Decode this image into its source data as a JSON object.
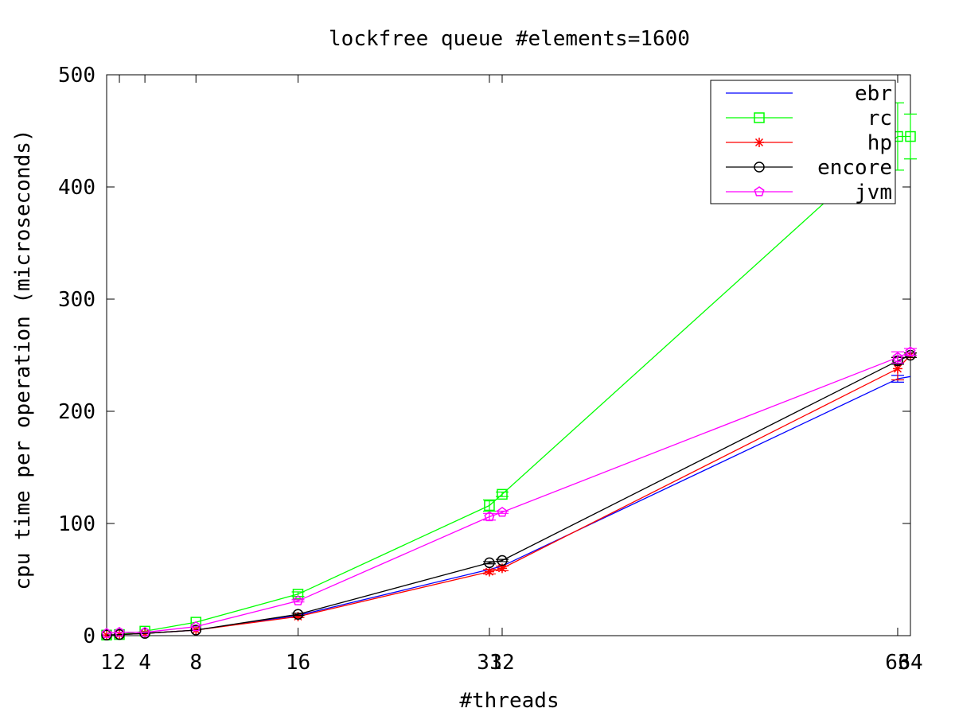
{
  "chart_data": {
    "type": "line",
    "title": "lockfree queue #elements=1600",
    "xlabel": "#threads",
    "ylabel": "cpu time per operation (microseconds)",
    "xlim": [
      1,
      64
    ],
    "ylim": [
      0,
      500
    ],
    "xticks": [
      1,
      2,
      4,
      8,
      16,
      31,
      32,
      63,
      64
    ],
    "xtick_labels": [
      "1",
      "2",
      "4",
      "8",
      "16",
      "31",
      "32",
      "63",
      "64"
    ],
    "yticks": [
      0,
      100,
      200,
      300,
      400,
      500
    ],
    "ytick_labels": [
      "0",
      "100",
      "200",
      "300",
      "400",
      "500"
    ],
    "legend_position": "top-right",
    "grid": false,
    "series": [
      {
        "name": "ebr",
        "color": "#0000ff",
        "marker": "none",
        "points": [
          [
            1,
            0.5
          ],
          [
            2,
            1
          ],
          [
            4,
            2
          ],
          [
            8,
            5
          ],
          [
            16,
            18
          ],
          [
            31,
            59
          ],
          [
            32,
            62
          ],
          [
            63,
            229
          ],
          [
            64,
            231
          ]
        ],
        "errors": [
          0,
          0,
          0,
          0,
          0,
          0,
          0,
          3,
          0
        ]
      },
      {
        "name": "rc",
        "color": "#00ff00",
        "marker": "square",
        "points": [
          [
            1,
            0.5
          ],
          [
            2,
            1
          ],
          [
            4,
            4
          ],
          [
            8,
            12
          ],
          [
            16,
            37
          ],
          [
            31,
            116
          ],
          [
            32,
            126
          ],
          [
            63,
            445
          ],
          [
            64,
            445
          ]
        ],
        "errors": [
          0,
          0,
          0,
          0,
          2,
          5,
          2,
          30,
          20
        ]
      },
      {
        "name": "hp",
        "color": "#ff0000",
        "marker": "star",
        "points": [
          [
            1,
            0.5
          ],
          [
            2,
            1
          ],
          [
            4,
            2
          ],
          [
            8,
            5
          ],
          [
            16,
            17
          ],
          [
            31,
            57
          ],
          [
            32,
            60
          ],
          [
            63,
            238
          ],
          [
            64,
            250
          ]
        ],
        "errors": [
          0,
          0,
          0,
          0,
          1,
          2,
          2,
          10,
          2
        ]
      },
      {
        "name": "encore",
        "color": "#000000",
        "marker": "circle",
        "points": [
          [
            1,
            0.5
          ],
          [
            2,
            1
          ],
          [
            4,
            2
          ],
          [
            8,
            5
          ],
          [
            16,
            19
          ],
          [
            31,
            65
          ],
          [
            32,
            67
          ],
          [
            63,
            245
          ],
          [
            64,
            250
          ]
        ],
        "errors": [
          0,
          0,
          0,
          0,
          1,
          1,
          1,
          3,
          2
        ]
      },
      {
        "name": "jvm",
        "color": "#ff00ff",
        "marker": "pentagon",
        "points": [
          [
            1,
            2
          ],
          [
            2,
            3
          ],
          [
            4,
            3
          ],
          [
            8,
            8
          ],
          [
            16,
            31
          ],
          [
            31,
            106
          ],
          [
            32,
            110
          ],
          [
            63,
            248
          ],
          [
            64,
            253
          ]
        ],
        "errors": [
          0,
          0,
          0,
          0,
          1,
          3,
          1,
          5,
          3
        ]
      }
    ]
  }
}
